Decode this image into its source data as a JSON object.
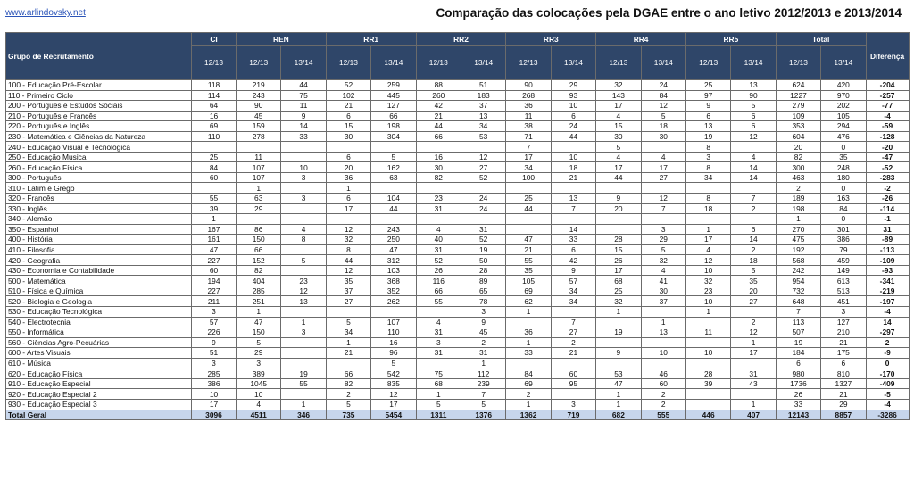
{
  "header": {
    "site_link": "www.arlindovsky.net",
    "title": "Comparação das colocações pela DGAE entre o ano letivo 2012/2013 e 2013/2014"
  },
  "table": {
    "group_header": "Grupo de Recrutamento",
    "diff_header": "Diferença",
    "columns": [
      {
        "name": "CI",
        "subs": [
          "12/13"
        ]
      },
      {
        "name": "REN",
        "subs": [
          "12/13",
          "13/14"
        ]
      },
      {
        "name": "RR1",
        "subs": [
          "12/13",
          "13/14"
        ]
      },
      {
        "name": "RR2",
        "subs": [
          "12/13",
          "13/14"
        ]
      },
      {
        "name": "RR3",
        "subs": [
          "12/13",
          "13/14"
        ]
      },
      {
        "name": "RR4",
        "subs": [
          "12/13",
          "13/14"
        ]
      },
      {
        "name": "RR5",
        "subs": [
          "12/13",
          "13/14"
        ]
      },
      {
        "name": "Total",
        "subs": [
          "12/13",
          "13/14"
        ]
      }
    ],
    "rows": [
      {
        "label": "100 - Educação Pré-Escolar",
        "values": [
          "118",
          "219",
          "44",
          "52",
          "259",
          "88",
          "51",
          "90",
          "29",
          "32",
          "24",
          "25",
          "13",
          "624",
          "420"
        ],
        "diff": "-204"
      },
      {
        "label": "110 - Primeiro Ciclo",
        "values": [
          "114",
          "243",
          "75",
          "102",
          "445",
          "260",
          "183",
          "268",
          "93",
          "143",
          "84",
          "97",
          "90",
          "1227",
          "970"
        ],
        "diff": "-257"
      },
      {
        "label": "200 - Português e Estudos Sociais",
        "values": [
          "64",
          "90",
          "11",
          "21",
          "127",
          "42",
          "37",
          "36",
          "10",
          "17",
          "12",
          "9",
          "5",
          "279",
          "202"
        ],
        "diff": "-77"
      },
      {
        "label": "210 - Português e Francês",
        "values": [
          "16",
          "45",
          "9",
          "6",
          "66",
          "21",
          "13",
          "11",
          "6",
          "4",
          "5",
          "6",
          "6",
          "109",
          "105"
        ],
        "diff": "-4"
      },
      {
        "label": "220 - Português e Inglês",
        "values": [
          "69",
          "159",
          "14",
          "15",
          "198",
          "44",
          "34",
          "38",
          "24",
          "15",
          "18",
          "13",
          "6",
          "353",
          "294"
        ],
        "diff": "-59"
      },
      {
        "label": "230 - Matemática e Ciências da Natureza",
        "values": [
          "110",
          "278",
          "33",
          "30",
          "304",
          "66",
          "53",
          "71",
          "44",
          "30",
          "30",
          "19",
          "12",
          "604",
          "476"
        ],
        "diff": "-128"
      },
      {
        "label": "240 - Educação Visual e Tecnológica",
        "values": [
          "",
          "",
          "",
          "",
          "",
          "",
          "",
          "7",
          "",
          "5",
          "",
          "8",
          "",
          "20",
          "0"
        ],
        "diff": "-20"
      },
      {
        "label": "250 - Educação Musical",
        "values": [
          "25",
          "11",
          "",
          "6",
          "5",
          "16",
          "12",
          "17",
          "10",
          "4",
          "4",
          "3",
          "4",
          "82",
          "35"
        ],
        "diff": "-47"
      },
      {
        "label": "260 - Educação Física",
        "values": [
          "84",
          "107",
          "10",
          "20",
          "162",
          "30",
          "27",
          "34",
          "18",
          "17",
          "17",
          "8",
          "14",
          "300",
          "248"
        ],
        "diff": "-52"
      },
      {
        "label": "300 - Português",
        "values": [
          "60",
          "107",
          "3",
          "36",
          "63",
          "82",
          "52",
          "100",
          "21",
          "44",
          "27",
          "34",
          "14",
          "463",
          "180"
        ],
        "diff": "-283"
      },
      {
        "label": "310 - Latim e Grego",
        "values": [
          "",
          "1",
          "",
          "1",
          "",
          "",
          "",
          "",
          "",
          "",
          "",
          "",
          "",
          "2",
          "0"
        ],
        "diff": "-2"
      },
      {
        "label": "320 - Francês",
        "values": [
          "55",
          "63",
          "3",
          "6",
          "104",
          "23",
          "24",
          "25",
          "13",
          "9",
          "12",
          "8",
          "7",
          "189",
          "163"
        ],
        "diff": "-26"
      },
      {
        "label": "330 - Inglês",
        "values": [
          "39",
          "29",
          "",
          "17",
          "44",
          "31",
          "24",
          "44",
          "7",
          "20",
          "7",
          "18",
          "2",
          "198",
          "84"
        ],
        "diff": "-114"
      },
      {
        "label": "340 - Alemão",
        "values": [
          "1",
          "",
          "",
          "",
          "",
          "",
          "",
          "",
          "",
          "",
          "",
          "",
          "",
          "1",
          "0"
        ],
        "diff": "-1"
      },
      {
        "label": "350 - Espanhol",
        "values": [
          "167",
          "86",
          "4",
          "12",
          "243",
          "4",
          "31",
          "",
          "14",
          "",
          "3",
          "1",
          "6",
          "270",
          "301"
        ],
        "diff": "31"
      },
      {
        "label": "400 - História",
        "values": [
          "161",
          "150",
          "8",
          "32",
          "250",
          "40",
          "52",
          "47",
          "33",
          "28",
          "29",
          "17",
          "14",
          "475",
          "386"
        ],
        "diff": "-89"
      },
      {
        "label": "410 - Filosofia",
        "values": [
          "47",
          "66",
          "",
          "8",
          "47",
          "31",
          "19",
          "21",
          "6",
          "15",
          "5",
          "4",
          "2",
          "192",
          "79"
        ],
        "diff": "-113"
      },
      {
        "label": "420 - Geografia",
        "values": [
          "227",
          "152",
          "5",
          "44",
          "312",
          "52",
          "50",
          "55",
          "42",
          "26",
          "32",
          "12",
          "18",
          "568",
          "459"
        ],
        "diff": "-109"
      },
      {
        "label": "430 - Economia  e Contabilidade",
        "values": [
          "60",
          "82",
          "",
          "12",
          "103",
          "26",
          "28",
          "35",
          "9",
          "17",
          "4",
          "10",
          "5",
          "242",
          "149"
        ],
        "diff": "-93"
      },
      {
        "label": "500 - Matemática",
        "values": [
          "194",
          "404",
          "23",
          "35",
          "368",
          "116",
          "89",
          "105",
          "57",
          "68",
          "41",
          "32",
          "35",
          "954",
          "613"
        ],
        "diff": "-341"
      },
      {
        "label": "510 - Física e Química",
        "values": [
          "227",
          "285",
          "12",
          "37",
          "352",
          "66",
          "65",
          "69",
          "34",
          "25",
          "30",
          "23",
          "20",
          "732",
          "513"
        ],
        "diff": "-219"
      },
      {
        "label": "520 - Biologia e Geologia",
        "values": [
          "211",
          "251",
          "13",
          "27",
          "262",
          "55",
          "78",
          "62",
          "34",
          "32",
          "37",
          "10",
          "27",
          "648",
          "451"
        ],
        "diff": "-197"
      },
      {
        "label": "530 - Educação Tecnológica",
        "values": [
          "3",
          "1",
          "",
          "",
          "",
          "",
          "3",
          "1",
          "",
          "1",
          "",
          "1",
          "",
          "7",
          "3"
        ],
        "diff": "-4"
      },
      {
        "label": "540 - Electrotecnia",
        "values": [
          "57",
          "47",
          "1",
          "5",
          "107",
          "4",
          "9",
          "",
          "7",
          "",
          "1",
          "",
          "2",
          "113",
          "127"
        ],
        "diff": "14"
      },
      {
        "label": "550 - Informática",
        "values": [
          "226",
          "150",
          "3",
          "34",
          "110",
          "31",
          "45",
          "36",
          "27",
          "19",
          "13",
          "11",
          "12",
          "507",
          "210"
        ],
        "diff": "-297"
      },
      {
        "label": "560 - Ciências Agro-Pecuárias",
        "values": [
          "9",
          "5",
          "",
          "1",
          "16",
          "3",
          "2",
          "1",
          "2",
          "",
          "",
          "",
          "1",
          "19",
          "21"
        ],
        "diff": "2"
      },
      {
        "label": "600 - Artes Visuais",
        "values": [
          "51",
          "29",
          "",
          "21",
          "96",
          "31",
          "31",
          "33",
          "21",
          "9",
          "10",
          "10",
          "17",
          "184",
          "175"
        ],
        "diff": "-9"
      },
      {
        "label": "610 - Música",
        "values": [
          "3",
          "3",
          "",
          "",
          "5",
          "",
          "1",
          "",
          "",
          "",
          "",
          "",
          "",
          "6",
          "6"
        ],
        "diff": "0"
      },
      {
        "label": "620 - Educação Física",
        "values": [
          "285",
          "389",
          "19",
          "66",
          "542",
          "75",
          "112",
          "84",
          "60",
          "53",
          "46",
          "28",
          "31",
          "980",
          "810"
        ],
        "diff": "-170"
      },
      {
        "label": "910 - Educação Especial",
        "values": [
          "386",
          "1045",
          "55",
          "82",
          "835",
          "68",
          "239",
          "69",
          "95",
          "47",
          "60",
          "39",
          "43",
          "1736",
          "1327"
        ],
        "diff": "-409"
      },
      {
        "label": "920 - Educação Especial 2",
        "values": [
          "10",
          "10",
          "",
          "2",
          "12",
          "1",
          "7",
          "2",
          "",
          "1",
          "2",
          "",
          "",
          "26",
          "21"
        ],
        "diff": "-5"
      },
      {
        "label": "930 - Educação Especial 3",
        "values": [
          "17",
          "4",
          "1",
          "5",
          "17",
          "5",
          "5",
          "1",
          "3",
          "1",
          "2",
          "",
          "1",
          "33",
          "29"
        ],
        "diff": "-4"
      }
    ],
    "total": {
      "label": "Total Geral",
      "values": [
        "3096",
        "4511",
        "346",
        "735",
        "5454",
        "1311",
        "1376",
        "1362",
        "719",
        "682",
        "555",
        "446",
        "407",
        "12143",
        "8857"
      ],
      "diff": "-3286"
    }
  }
}
